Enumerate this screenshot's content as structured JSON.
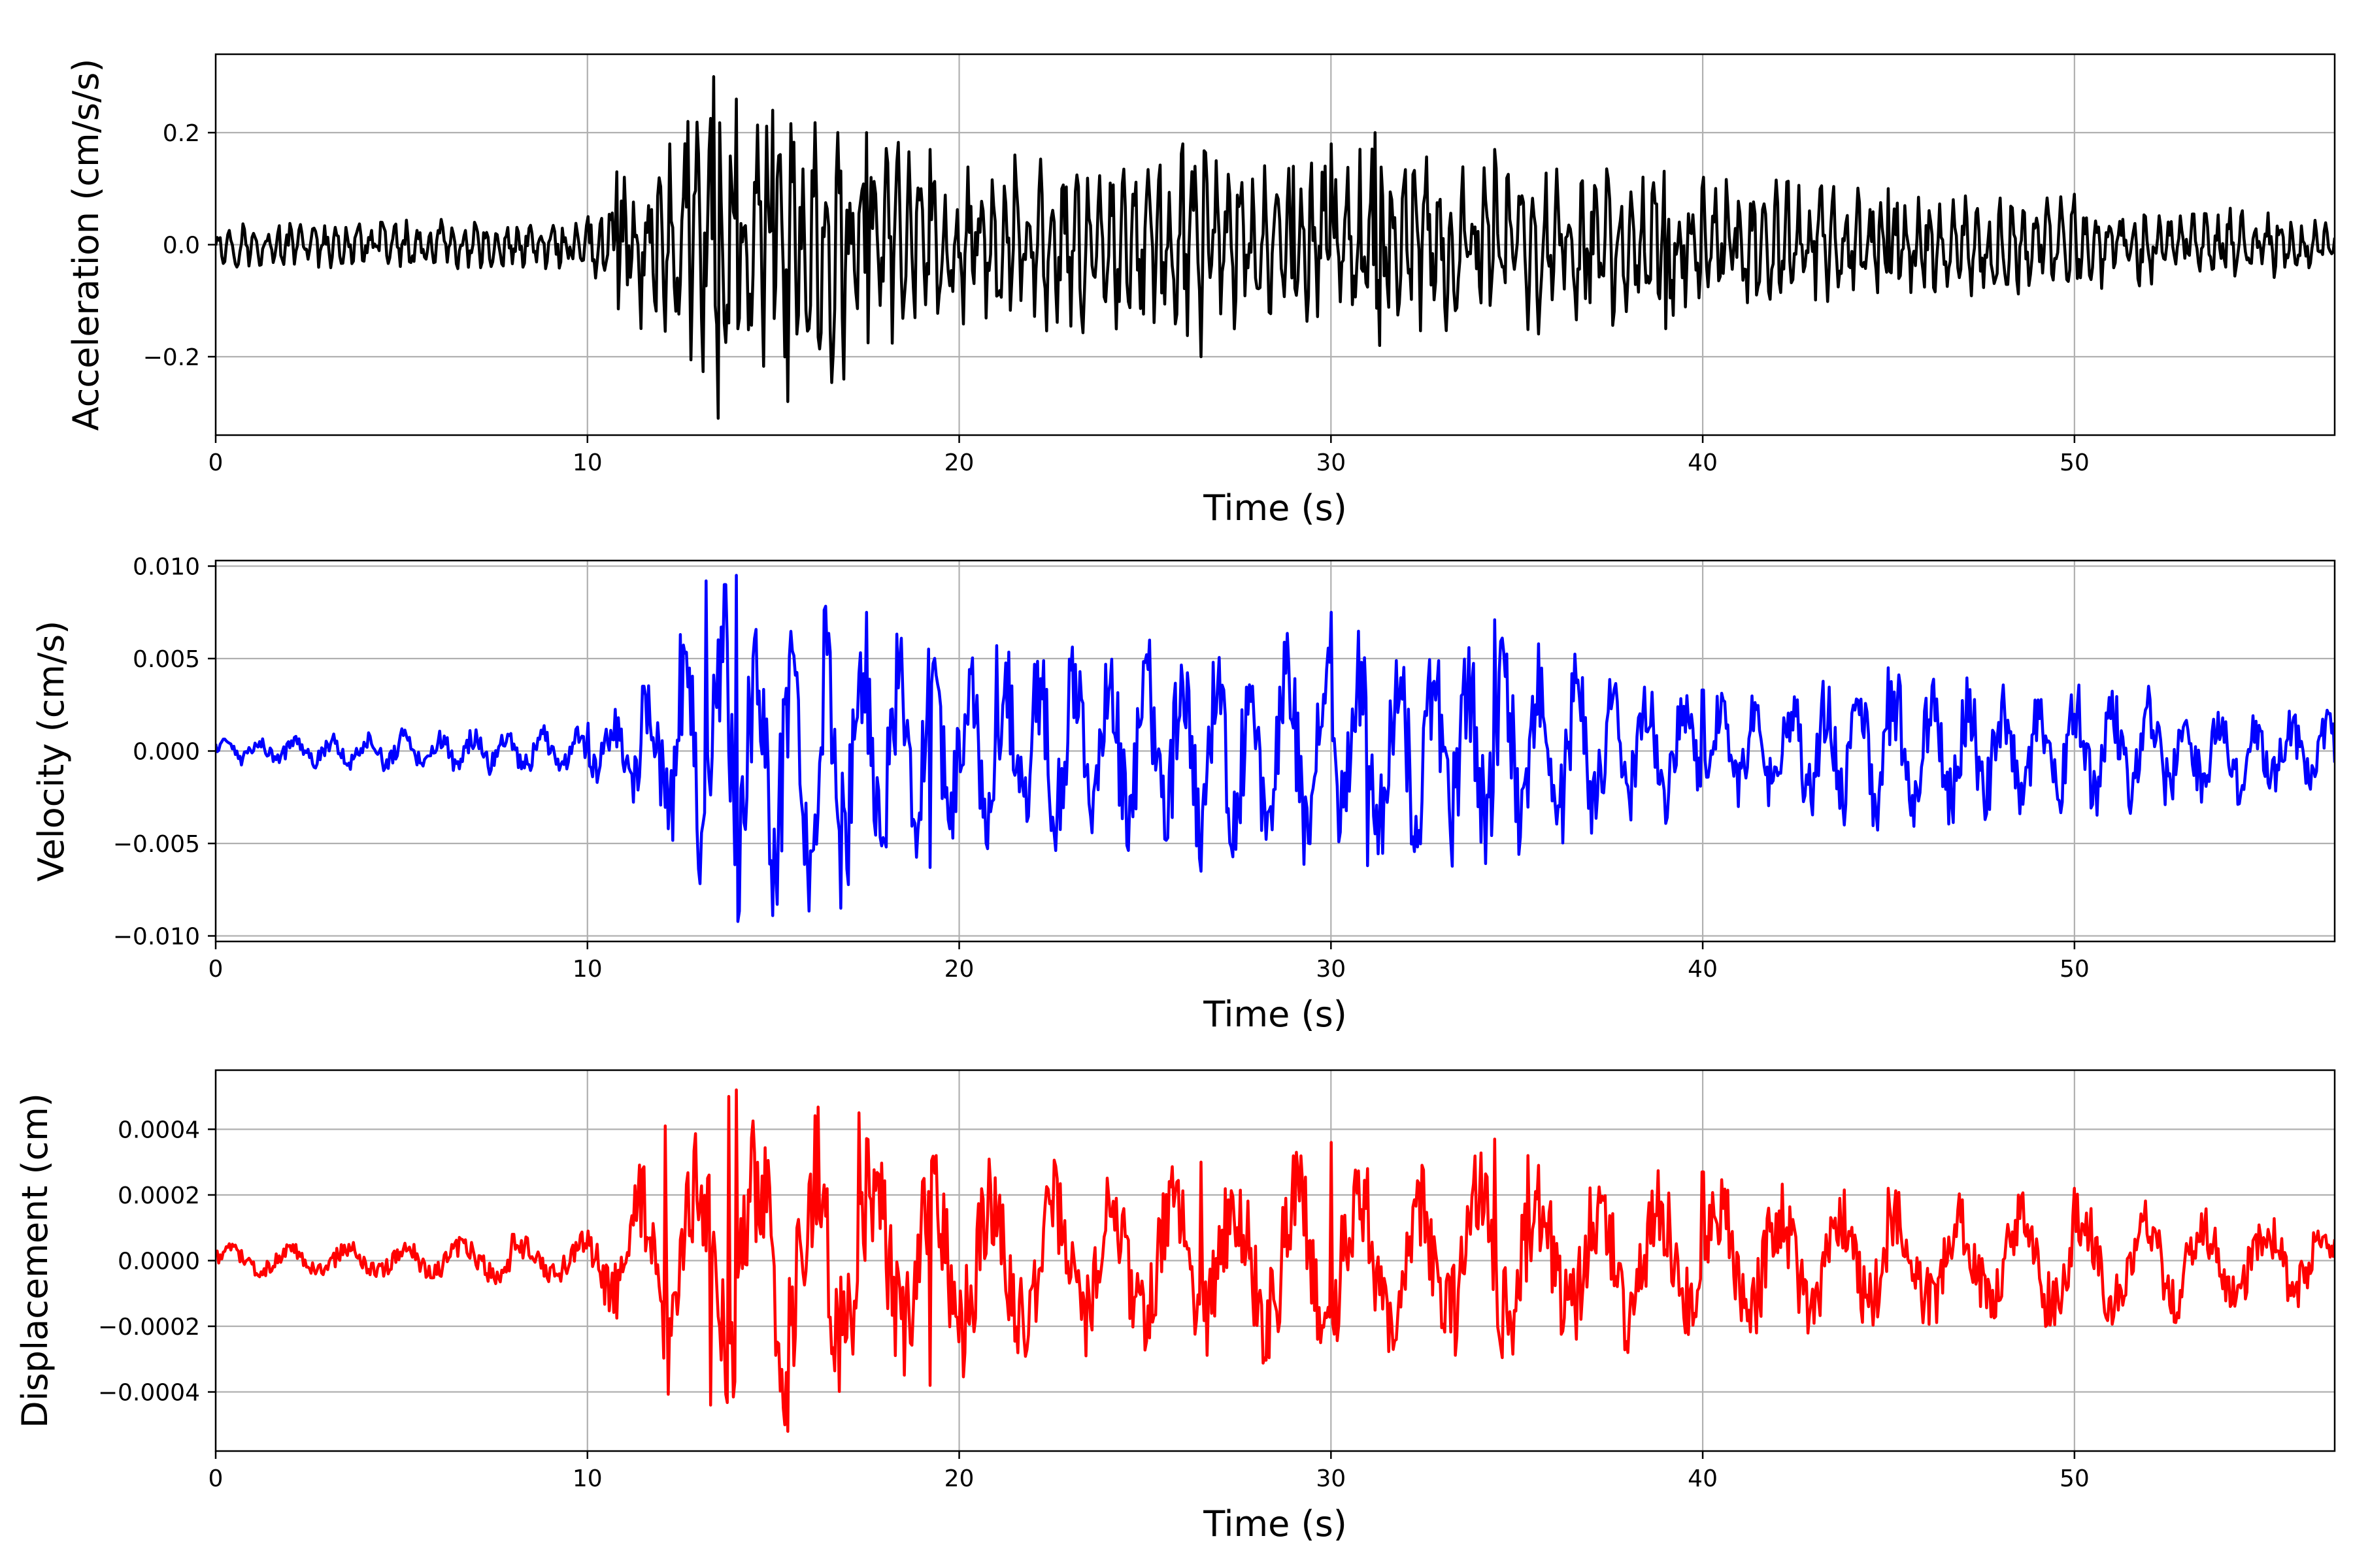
{
  "chart_data": [
    {
      "type": "line",
      "xlabel": "Time (s)",
      "ylabel": "Acceleration (cm/s/s)",
      "xlim": [
        0,
        57
      ],
      "ylim": [
        -0.34,
        0.34
      ],
      "xticks": [
        0,
        10,
        20,
        30,
        40,
        50
      ],
      "xtick_labels": [
        "0",
        "10",
        "20",
        "30",
        "40",
        "50"
      ],
      "yticks": [
        -0.2,
        0.0,
        0.2
      ],
      "ytick_labels": [
        "−0.2",
        "0.0",
        "0.2"
      ],
      "grid": true,
      "series": [
        {
          "color": "#000000",
          "x": [
            0,
            10,
            10.8,
            12.2,
            12.7,
            13.4,
            13.5,
            14.0,
            15.0,
            15.4,
            16.9,
            17.5,
            19.2,
            21.5,
            26.0,
            26.5,
            29.0,
            30.0,
            31.2,
            31.3,
            34.4,
            39.0,
            45.0,
            50.0,
            57
          ],
          "peaks": [
            0.04,
            0.05,
            0.13,
            0.18,
            0.22,
            0.3,
            -0.31,
            0.26,
            0.24,
            -0.28,
            -0.24,
            0.2,
            0.17,
            0.16,
            0.18,
            -0.2,
            0.14,
            0.18,
            0.2,
            -0.18,
            0.17,
            -0.15,
            0.1,
            0.09,
            0.05
          ]
        }
      ]
    },
    {
      "type": "line",
      "xlabel": "Time (s)",
      "ylabel": "Velocity (cm/s)",
      "xlim": [
        0,
        57
      ],
      "ylim": [
        -0.0103,
        0.0103
      ],
      "xticks": [
        0,
        10,
        20,
        30,
        40,
        50
      ],
      "xtick_labels": [
        "0",
        "10",
        "20",
        "30",
        "40",
        "50"
      ],
      "yticks": [
        -0.01,
        -0.005,
        0.0,
        0.005,
        0.01
      ],
      "ytick_labels": [
        "−0.010",
        "−0.005",
        "0.000",
        "0.005",
        "0.010"
      ],
      "grid": true,
      "series": [
        {
          "color": "#0000ff",
          "x": [
            0,
            5,
            10,
            11.5,
            12.5,
            13.2,
            13.7,
            14.0,
            15.0,
            16.8,
            17.5,
            19.2,
            21.0,
            26.5,
            30.0,
            31.0,
            34.4,
            40.0,
            45.0,
            52.0,
            57
          ],
          "peaks": [
            0.0007,
            0.0012,
            0.0015,
            0.0035,
            0.0063,
            0.0092,
            0.009,
            0.0095,
            -0.0089,
            -0.0085,
            0.0075,
            -0.0063,
            0.0057,
            -0.0065,
            0.0075,
            -0.0062,
            0.0071,
            0.0033,
            0.0045,
            0.0035,
            0.0025
          ]
        }
      ]
    },
    {
      "type": "line",
      "xlabel": "Time (s)",
      "ylabel": "Displacement (cm)",
      "xlim": [
        0,
        57
      ],
      "ylim": [
        -0.00058,
        0.00058
      ],
      "xticks": [
        0,
        10,
        20,
        30,
        40,
        50
      ],
      "xtick_labels": [
        "0",
        "10",
        "20",
        "30",
        "40",
        "50"
      ],
      "yticks": [
        -0.0004,
        -0.0002,
        0.0,
        0.0002,
        0.0004
      ],
      "ytick_labels": [
        "−0.0004",
        "−0.0002",
        "0.0000",
        "0.0002",
        "0.0004"
      ],
      "grid": true,
      "series": [
        {
          "color": "#ff0000",
          "x": [
            0,
            8,
            10,
            12.1,
            13.3,
            13.8,
            14.0,
            15.3,
            15.4,
            17.3,
            19.2,
            23.4,
            26.5,
            30.0,
            31.0,
            34.4,
            35.3,
            40.0,
            45.0,
            50.0,
            57
          ],
          "peaks": [
            5e-05,
            8e-05,
            9e-05,
            0.00041,
            -0.00044,
            0.0005,
            0.00052,
            -0.0005,
            -0.00052,
            0.00045,
            -0.00038,
            -0.00029,
            0.0003,
            0.00036,
            0.00028,
            0.00037,
            0.00032,
            0.00027,
            0.00022,
            0.00022,
            0.00015
          ]
        }
      ]
    }
  ]
}
